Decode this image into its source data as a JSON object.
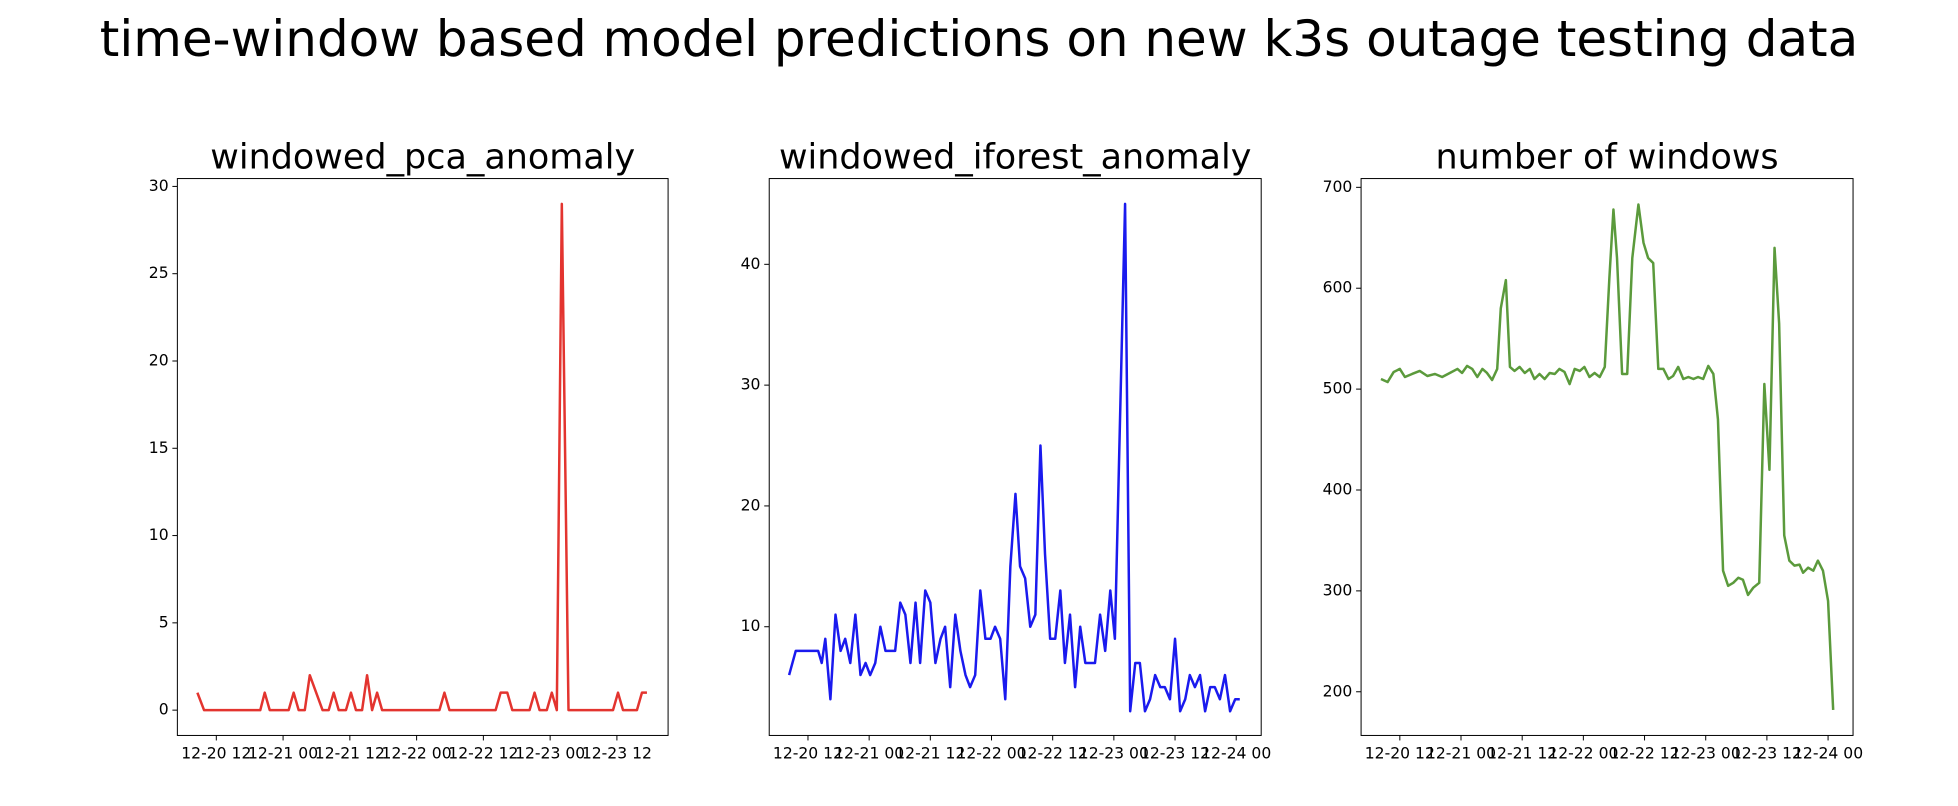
{
  "title": "time-window based model predictions on new k3s outage testing data",
  "chart_data": [
    {
      "type": "line",
      "title": "windowed_pca_anomaly",
      "color": "#e3342f",
      "x": [
        8.6,
        9.8,
        19.9,
        20.7,
        21.6,
        25.0,
        25.9,
        26.8,
        27.9,
        28.8,
        31.1,
        32.2,
        33.1,
        34.0,
        35.3,
        36.2,
        37.1,
        38.2,
        39.1,
        40.0,
        40.9,
        41.8,
        52.1,
        53.0,
        53.9,
        62.2,
        63.1,
        64.3,
        65.2,
        68.3,
        69.2,
        70.1,
        71.4,
        72.3,
        73.2,
        74.1,
        75.3,
        83.3,
        84.2,
        85.1,
        87.6,
        88.5,
        89.4
      ],
      "values": [
        1,
        0,
        0,
        1,
        0,
        0,
        1,
        0,
        0,
        2,
        0,
        0,
        1,
        0,
        0,
        1,
        0,
        0,
        2,
        0,
        1,
        0,
        0,
        1,
        0,
        0,
        1,
        1,
        0,
        0,
        1,
        0,
        0,
        1,
        0,
        29,
        0,
        0,
        1,
        0,
        0,
        1,
        1
      ],
      "xlim": [
        5.0,
        93.2
      ],
      "ylim": [
        -1.45,
        30.45
      ],
      "xticks": [
        {
          "value": 12,
          "label": "12-20 12"
        },
        {
          "value": 24,
          "label": "12-21 00"
        },
        {
          "value": 36,
          "label": "12-21 12"
        },
        {
          "value": 48,
          "label": "12-22 00"
        },
        {
          "value": 60,
          "label": "12-22 12"
        },
        {
          "value": 72,
          "label": "12-23 00"
        },
        {
          "value": 84,
          "label": "12-23 12"
        }
      ],
      "yticks": [
        0,
        5,
        10,
        15,
        20,
        25,
        30
      ]
    },
    {
      "type": "line",
      "title": "windowed_iforest_anomaly",
      "color": "#1a1aee",
      "x": [
        8.3,
        9.6,
        14.0,
        14.7,
        15.4,
        16.4,
        17.4,
        18.4,
        19.3,
        20.3,
        21.3,
        22.3,
        23.3,
        24.2,
        25.2,
        26.2,
        27.2,
        29.1,
        30.1,
        31.1,
        32.1,
        33.1,
        34.0,
        35.0,
        36.0,
        37.0,
        38.0,
        38.9,
        39.9,
        40.9,
        41.9,
        42.9,
        43.8,
        44.8,
        45.8,
        46.8,
        47.8,
        48.7,
        49.7,
        50.7,
        51.7,
        52.7,
        53.6,
        54.6,
        55.6,
        56.6,
        57.6,
        58.5,
        59.5,
        60.5,
        61.5,
        62.4,
        63.4,
        64.4,
        65.4,
        66.4,
        68.3,
        69.3,
        70.3,
        71.3,
        72.2,
        74.2,
        75.2,
        76.2,
        77.1,
        78.1,
        79.1,
        80.1,
        81.1,
        82.0,
        83.0,
        84.0,
        85.0,
        86.0,
        86.9,
        87.9,
        88.9,
        89.9,
        90.9,
        91.8,
        92.8,
        93.8,
        94.8,
        95.8,
        96.7
      ],
      "values": [
        6,
        8,
        8,
        7,
        9,
        4,
        11,
        8,
        9,
        7,
        11,
        6,
        7,
        6,
        7,
        10,
        8,
        8,
        12,
        11,
        7,
        12,
        7,
        13,
        12,
        7,
        9,
        10,
        5,
        11,
        8,
        6,
        5,
        6,
        13,
        9,
        9,
        10,
        9,
        4,
        15,
        21,
        15,
        14,
        10,
        11,
        25,
        16,
        9,
        9,
        13,
        7,
        11,
        5,
        10,
        7,
        7,
        11,
        8,
        13,
        9,
        45,
        3,
        7,
        7,
        3,
        4,
        6,
        5,
        5,
        4,
        9,
        3,
        4,
        6,
        5,
        6,
        3,
        5,
        5,
        4,
        6,
        3,
        4,
        4
      ],
      "xlim": [
        4.4,
        100.9
      ],
      "ylim": [
        1.0,
        47.1
      ],
      "xticks": [
        {
          "value": 12,
          "label": "12-20 12"
        },
        {
          "value": 24,
          "label": "12-21 00"
        },
        {
          "value": 36,
          "label": "12-21 12"
        },
        {
          "value": 48,
          "label": "12-22 00"
        },
        {
          "value": 60,
          "label": "12-22 12"
        },
        {
          "value": 72,
          "label": "12-23 00"
        },
        {
          "value": 84,
          "label": "12-23 12"
        },
        {
          "value": 96,
          "label": "12-24 00"
        }
      ],
      "yticks": [
        10,
        20,
        30,
        40
      ]
    },
    {
      "type": "line",
      "title": "number of windows",
      "color": "#5b9a3c",
      "x": [
        8.3,
        9.6,
        10.8,
        12.0,
        13.0,
        14.4,
        15.9,
        17.4,
        18.9,
        20.3,
        21.8,
        23.3,
        24.2,
        25.2,
        26.2,
        27.2,
        28.2,
        29.1,
        30.1,
        31.1,
        31.8,
        32.8,
        33.6,
        34.5,
        35.5,
        36.5,
        37.5,
        38.4,
        39.4,
        40.4,
        41.4,
        42.4,
        43.3,
        44.3,
        45.3,
        46.3,
        47.3,
        48.2,
        49.2,
        50.2,
        51.2,
        52.2,
        53.1,
        53.9,
        54.6,
        55.6,
        56.6,
        57.6,
        58.8,
        59.8,
        60.7,
        61.7,
        62.7,
        63.7,
        64.7,
        65.6,
        66.6,
        67.6,
        68.6,
        69.6,
        70.5,
        71.5,
        72.5,
        73.5,
        74.4,
        75.4,
        76.4,
        77.4,
        78.4,
        79.3,
        80.3,
        81.3,
        82.5,
        83.5,
        84.5,
        85.5,
        86.4,
        87.4,
        88.4,
        89.4,
        90.4,
        91.1,
        92.1,
        93.1,
        94.0,
        95.0,
        96.0,
        97.0
      ],
      "values": [
        510,
        507,
        517,
        520,
        512,
        515,
        518,
        513,
        515,
        512,
        516,
        520,
        516,
        523,
        520,
        512,
        520,
        516,
        509,
        520,
        580,
        608,
        522,
        518,
        522,
        516,
        520,
        510,
        515,
        510,
        516,
        515,
        520,
        517,
        505,
        520,
        518,
        522,
        512,
        516,
        512,
        522,
        610,
        678,
        630,
        515,
        515,
        630,
        683,
        645,
        630,
        625,
        520,
        520,
        510,
        513,
        522,
        510,
        512,
        510,
        512,
        510,
        523,
        515,
        470,
        320,
        305,
        308,
        313,
        311,
        296,
        303,
        308,
        505,
        420,
        640,
        565,
        355,
        330,
        325,
        326,
        318,
        323,
        320,
        330,
        320,
        290,
        182
      ],
      "xlim": [
        4.4,
        100.9
      ],
      "ylim": [
        156.7,
        708.7
      ],
      "xticks": [
        {
          "value": 12,
          "label": "12-20 12"
        },
        {
          "value": 24,
          "label": "12-21 00"
        },
        {
          "value": 36,
          "label": "12-21 12"
        },
        {
          "value": 48,
          "label": "12-22 00"
        },
        {
          "value": 60,
          "label": "12-22 12"
        },
        {
          "value": 72,
          "label": "12-23 00"
        },
        {
          "value": 84,
          "label": "12-23 12"
        },
        {
          "value": 96,
          "label": "12-24 00"
        }
      ],
      "yticks": [
        200,
        300,
        400,
        500,
        600,
        700
      ]
    }
  ]
}
